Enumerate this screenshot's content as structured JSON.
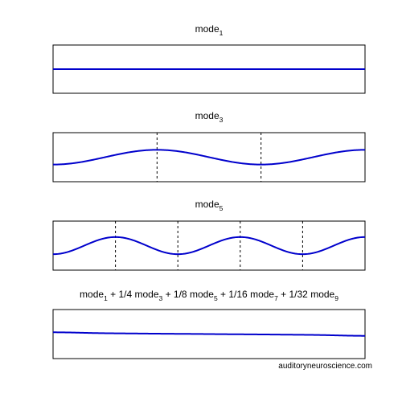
{
  "chart_data": [
    {
      "type": "line",
      "title": [
        {
          "t": "mode"
        },
        {
          "t": "1",
          "sub": true
        }
      ],
      "mode": 1,
      "amplitude": 0.0,
      "ylim": [
        -1,
        1
      ],
      "nodes": [],
      "series": [
        {
          "terms": [
            {
              "mode": 1,
              "weight": 1
            }
          ]
        }
      ]
    },
    {
      "type": "line",
      "title": [
        {
          "t": "mode"
        },
        {
          "t": "3",
          "sub": true
        }
      ],
      "mode": 3,
      "amplitude": 0.3,
      "ylim": [
        -1,
        1
      ],
      "nodes": [
        0.3333,
        0.6667
      ],
      "series": [
        {
          "terms": [
            {
              "mode": 3,
              "weight": 1
            }
          ]
        }
      ]
    },
    {
      "type": "line",
      "title": [
        {
          "t": "mode"
        },
        {
          "t": "5",
          "sub": true
        }
      ],
      "mode": 5,
      "amplitude": 0.35,
      "ylim": [
        -1,
        1
      ],
      "nodes": [
        0.2,
        0.4,
        0.6,
        0.8
      ],
      "series": [
        {
          "terms": [
            {
              "mode": 5,
              "weight": 1
            }
          ]
        }
      ]
    },
    {
      "type": "line",
      "title": [
        {
          "t": "mode"
        },
        {
          "t": "1",
          "sub": true
        },
        {
          "t": " + 1/4 mode"
        },
        {
          "t": "3",
          "sub": true
        },
        {
          "t": " + 1/8 mode"
        },
        {
          "t": "5",
          "sub": true
        },
        {
          "t": " + 1/16 mode"
        },
        {
          "t": "7",
          "sub": true
        },
        {
          "t": " + 1/32 mode"
        },
        {
          "t": "9",
          "sub": true
        }
      ],
      "mode": 0,
      "amplitude": 0.3,
      "ylim": [
        -1,
        1
      ],
      "nodes": [],
      "series": [
        {
          "terms": [
            {
              "mode": 1,
              "weight": 1
            },
            {
              "mode": 3,
              "weight": 0.25
            },
            {
              "mode": 5,
              "weight": 0.125
            },
            {
              "mode": 7,
              "weight": 0.0625
            },
            {
              "mode": 9,
              "weight": 0.03125
            }
          ]
        }
      ]
    }
  ],
  "credit": "auditoryneuroscience.com",
  "colors": {
    "line": "#0000cc",
    "axes": "#000000",
    "nodes": "#000000",
    "background": "#ffffff"
  }
}
